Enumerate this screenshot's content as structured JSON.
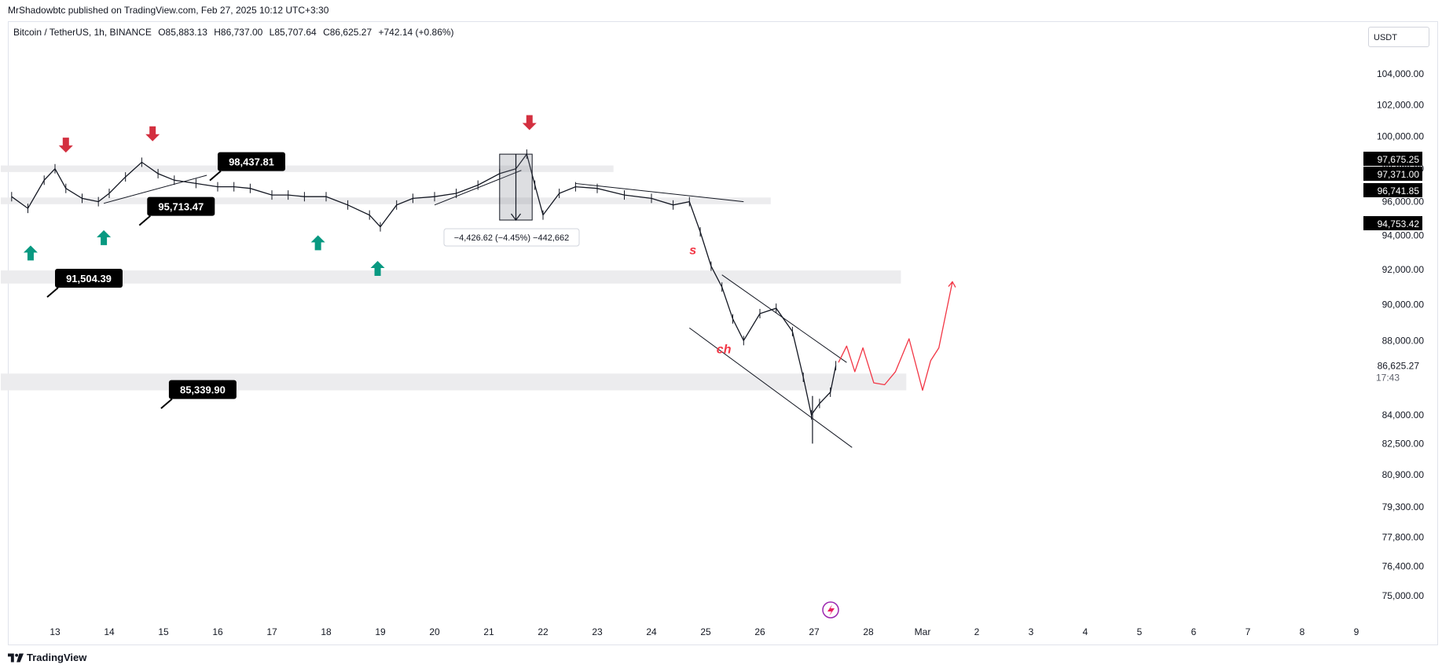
{
  "header": {
    "publisher_line": "MrShadowbtc published on TradingView.com, Feb 27, 2025 10:12 UTC+3:30"
  },
  "legend": {
    "symbol": "Bitcoin / TetherUS, 1h, BINANCE",
    "open": "O85,883.13",
    "high": "H86,737.00",
    "low": "L85,707.64",
    "close": "C86,625.27",
    "change": "+742.14 (+0.86%)"
  },
  "price_axis": {
    "unit": "USDT",
    "last_price_label": "86,625.27",
    "countdown": "17:43",
    "badges": [
      "97,675.25",
      "97,371.00",
      "96,741.85",
      "94,753.42"
    ]
  },
  "footer": {
    "brand": "TradingView"
  },
  "colors": {
    "up_arrow": "#089981",
    "down_arrow": "#d32f3f",
    "zone": "#ececee",
    "forecast": "#f23645",
    "candle": "#131722",
    "label_bg": "#000000"
  },
  "chart_data": {
    "type": "line",
    "title": "",
    "xlabel": "",
    "ylabel": "",
    "x_ticks": [
      "13",
      "14",
      "15",
      "16",
      "17",
      "18",
      "19",
      "20",
      "21",
      "22",
      "23",
      "24",
      "25",
      "26",
      "27",
      "28",
      "Mar",
      "2",
      "3",
      "4",
      "5",
      "6",
      "7",
      "8",
      "9"
    ],
    "y_ticks": [
      "104,000.00",
      "102,000.00",
      "100,000.00",
      "98,000.00",
      "96,000.00",
      "94,000.00",
      "92,000.00",
      "90,000.00",
      "88,000.00",
      "84,000.00",
      "82,500.00",
      "80,900.00",
      "79,300.00",
      "77,800.00",
      "76,400.00",
      "75,000.00"
    ],
    "ylim": [
      74500,
      106000
    ],
    "y_scale": "log",
    "series": [
      {
        "x": [
          12.2,
          12.5,
          12.8,
          13.0,
          13.2,
          13.5,
          13.8,
          14.0,
          14.3,
          14.6,
          14.9,
          15.2,
          15.6,
          16.0,
          16.3,
          16.6,
          17.0,
          17.3,
          17.6,
          18.0,
          18.4,
          18.8,
          19.0,
          19.3,
          19.6,
          20.0,
          20.4,
          20.8,
          21.2,
          21.5,
          21.7,
          21.85,
          22.0,
          22.3,
          22.6,
          23.0,
          23.5,
          24.0,
          24.4,
          24.7,
          24.9,
          25.1,
          25.3,
          25.5,
          25.7,
          26.0,
          26.3,
          26.6,
          26.8,
          26.95,
          27.1,
          27.3,
          27.4
        ],
        "values": [
          96300,
          95600,
          97300,
          98000,
          96800,
          96200,
          96000,
          96500,
          97500,
          98400,
          97700,
          97300,
          97100,
          96900,
          96900,
          96800,
          96400,
          96400,
          96300,
          96300,
          95800,
          95200,
          94500,
          95800,
          96200,
          96300,
          96500,
          97000,
          97700,
          98000,
          98900,
          97000,
          95200,
          96500,
          96900,
          96800,
          96400,
          96200,
          95800,
          96000,
          94200,
          92200,
          91000,
          89200,
          88000,
          89500,
          89800,
          88500,
          86000,
          84000,
          84600,
          85200,
          86625
        ]
      }
    ],
    "horizontal_zones": [
      {
        "from": 97800,
        "to": 98200,
        "x_start": 12.0,
        "x_end": 23.3
      },
      {
        "from": 95850,
        "to": 96250,
        "x_start": 12.0,
        "x_end": 26.2
      },
      {
        "from": 91200,
        "to": 91950,
        "x_start": 12.0,
        "x_end": 28.6
      },
      {
        "from": 85300,
        "to": 86200,
        "x_start": 12.0,
        "x_end": 28.7
      }
    ],
    "price_labels": [
      {
        "value": "98,437.81",
        "x": 16.0,
        "y": 98437.81
      },
      {
        "value": "95,713.47",
        "x": 14.7,
        "y": 95713.47
      },
      {
        "value": "91,504.39",
        "x": 13.0,
        "y": 91504.39
      },
      {
        "value": "85,339.90",
        "x": 15.1,
        "y": 85339.9
      }
    ],
    "up_arrows": [
      {
        "x": 12.55,
        "y": 93400
      },
      {
        "x": 13.9,
        "y": 94300
      },
      {
        "x": 17.85,
        "y": 94000
      },
      {
        "x": 18.95,
        "y": 92500
      }
    ],
    "down_arrows": [
      {
        "x": 13.2,
        "y": 99000
      },
      {
        "x": 14.8,
        "y": 99700
      },
      {
        "x": 21.75,
        "y": 100400
      }
    ],
    "annotations": [
      {
        "text": "s",
        "x": 24.7,
        "y": 92900
      },
      {
        "text": "ch",
        "x": 25.2,
        "y": 87300
      }
    ],
    "measure": {
      "text": "−4,426.62 (−4.45%) −442,662",
      "x_start": 21.2,
      "x_end": 21.8,
      "high": 98900,
      "low": 94900
    }
  }
}
